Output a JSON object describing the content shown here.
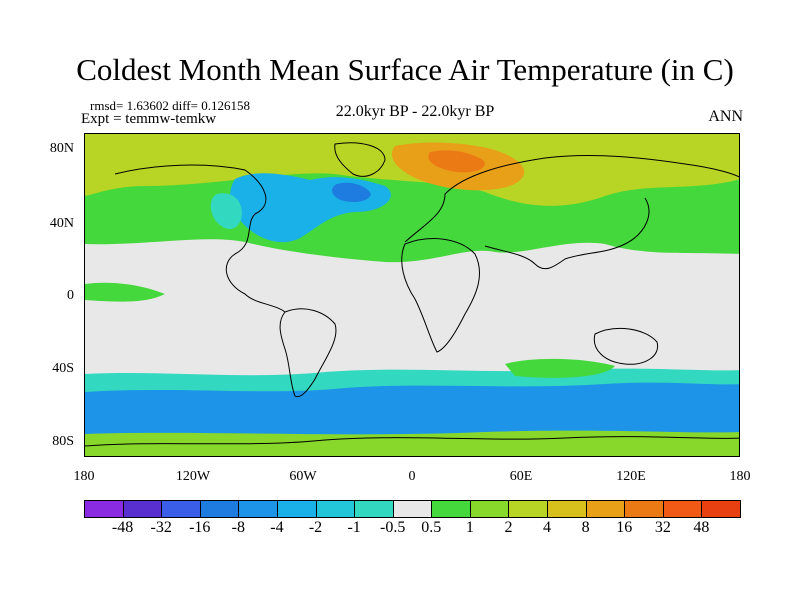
{
  "title": "Coldest Month Mean Surface Air Temperature (in C)",
  "stats_line": "rmsd= 1.63602 diff= 0.126158",
  "experiment_line": "Expt = temmw-temkw",
  "period_label": "22.0kyr BP - 22.0kyr BP",
  "season_label": "ANN",
  "lat_ticks": [
    "80N",
    "40N",
    "0",
    "40S",
    "80S"
  ],
  "lon_ticks": [
    "180",
    "120W",
    "60W",
    "0",
    "60E",
    "120E",
    "180"
  ],
  "colorbar": {
    "labels": [
      "-48",
      "-32",
      "-16",
      "-8",
      "-4",
      "-2",
      "-1",
      "-0.5",
      "0.5",
      "1",
      "2",
      "4",
      "8",
      "16",
      "32",
      "48"
    ],
    "colors": [
      "#8a2be2",
      "#5a2fd0",
      "#3b5ee8",
      "#1e7be0",
      "#1d94e8",
      "#1ab0e8",
      "#22c6d8",
      "#33d8c0",
      "#e8e8e8",
      "#44d83c",
      "#88d82c",
      "#b8d424",
      "#d8c01c",
      "#e8a018",
      "#ec7a14",
      "#f05a14",
      "#e84010"
    ]
  },
  "map": {
    "projection": "cylindrical-equidistant",
    "background_color": "#e8e8e8"
  }
}
